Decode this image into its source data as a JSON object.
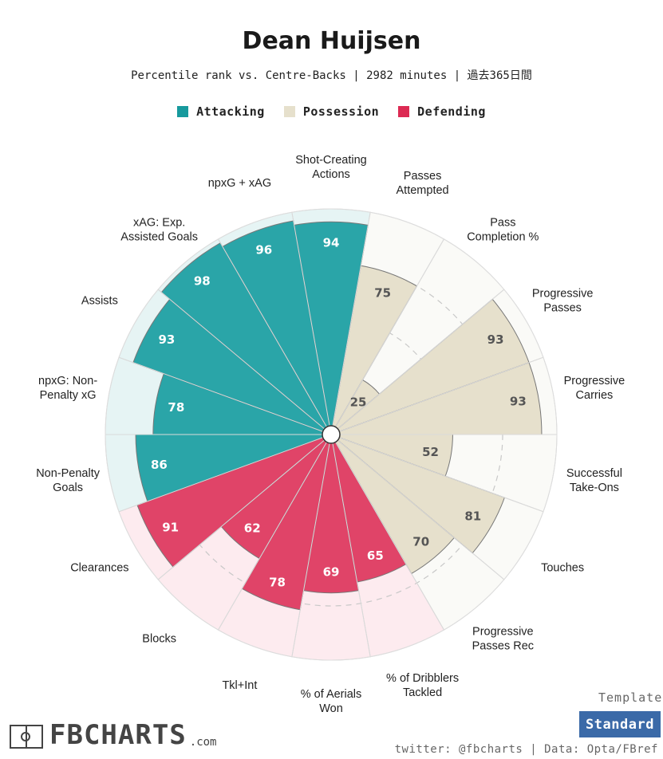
{
  "title": "Dean Huijsen",
  "subtitle": "Percentile rank vs. Centre-Backs | 2982 minutes | 過去365日間",
  "legend": [
    {
      "label": "Attacking",
      "color": "#179a9d"
    },
    {
      "label": "Possession",
      "color": "#e6e0cc"
    },
    {
      "label": "Defending",
      "color": "#dc2a53"
    }
  ],
  "template": {
    "label": "Template",
    "button": "Standard"
  },
  "footer": "twitter: @fbcharts | Data: Opta/FBref",
  "logo": {
    "text": "FBCHARTS",
    "suffix": ".com"
  },
  "chart_data": {
    "type": "radar-bar",
    "title": "Dean Huijsen",
    "max": 100,
    "rings": [
      25,
      50,
      75
    ],
    "series": [
      {
        "metric": "Shot-Creating Actions",
        "label_lines": [
          "Shot-Creating",
          "Actions"
        ],
        "value": 94,
        "group": "Attacking"
      },
      {
        "metric": "Passes Attempted",
        "label_lines": [
          "Passes",
          "Attempted"
        ],
        "value": 75,
        "group": "Possession"
      },
      {
        "metric": "Pass Completion %",
        "label_lines": [
          "Pass",
          "Completion %"
        ],
        "value": 25,
        "group": "Possession"
      },
      {
        "metric": "Progressive Passes",
        "label_lines": [
          "Progressive",
          "Passes"
        ],
        "value": 93,
        "group": "Possession"
      },
      {
        "metric": "Progressive Carries",
        "label_lines": [
          "Progressive",
          "Carries"
        ],
        "value": 93,
        "group": "Possession"
      },
      {
        "metric": "Successful Take-Ons",
        "label_lines": [
          "Successful",
          "Take-Ons"
        ],
        "value": 52,
        "group": "Possession"
      },
      {
        "metric": "Touches",
        "label_lines": [
          "Touches"
        ],
        "value": 81,
        "group": "Possession"
      },
      {
        "metric": "Progressive Passes Rec",
        "label_lines": [
          "Progressive",
          "Passes Rec"
        ],
        "value": 70,
        "group": "Possession"
      },
      {
        "metric": "% of Dribblers Tackled",
        "label_lines": [
          "% of Dribblers",
          "Tackled"
        ],
        "value": 65,
        "group": "Defending"
      },
      {
        "metric": "% of Aerials Won",
        "label_lines": [
          "% of Aerials",
          "Won"
        ],
        "value": 69,
        "group": "Defending"
      },
      {
        "metric": "Tkl+Int",
        "label_lines": [
          "Tkl+Int"
        ],
        "value": 78,
        "group": "Defending"
      },
      {
        "metric": "Blocks",
        "label_lines": [
          "Blocks"
        ],
        "value": 62,
        "group": "Defending"
      },
      {
        "metric": "Clearances",
        "label_lines": [
          "Clearances"
        ],
        "value": 91,
        "group": "Defending"
      },
      {
        "metric": "Non-Penalty Goals",
        "label_lines": [
          "Non-Penalty",
          "Goals"
        ],
        "value": 86,
        "group": "Attacking"
      },
      {
        "metric": "npxG: Non-Penalty xG",
        "label_lines": [
          "npxG: Non-",
          "Penalty xG"
        ],
        "value": 78,
        "group": "Attacking"
      },
      {
        "metric": "Assists",
        "label_lines": [
          "Assists"
        ],
        "value": 93,
        "group": "Attacking"
      },
      {
        "metric": "xAG: Exp. Assisted Goals",
        "label_lines": [
          "xAG: Exp.",
          "Assisted Goals"
        ],
        "value": 98,
        "group": "Attacking"
      },
      {
        "metric": "npxG + xAG",
        "label_lines": [
          "npxG + xAG"
        ],
        "value": 96,
        "group": "Attacking"
      }
    ],
    "colors": {
      "Attacking": {
        "fill": "#2aa5a8",
        "bg": "#e6f4f4",
        "text": "#ffffff"
      },
      "Possession": {
        "fill": "#e6e0cc",
        "bg": "#fafaf7",
        "text": "#555555"
      },
      "Defending": {
        "fill": "#e04468",
        "bg": "#fdebef",
        "text": "#ffffff"
      }
    }
  }
}
